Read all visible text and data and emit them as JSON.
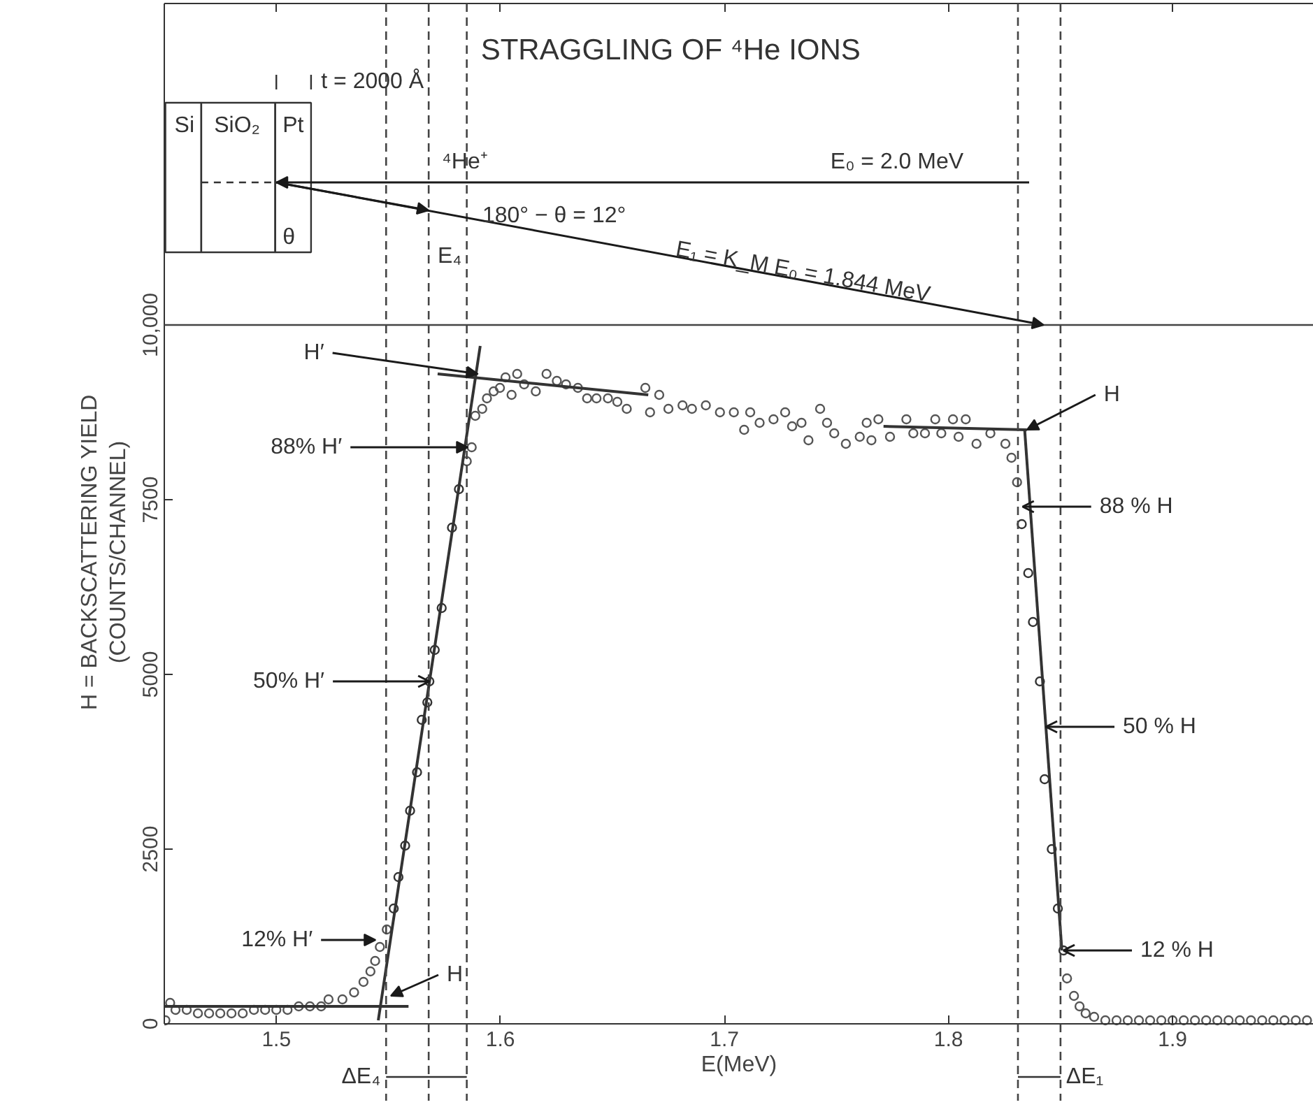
{
  "chart_data": {
    "type": "scatter",
    "title": "STRAGGLING OF ⁴He IONS",
    "xlabel": "E(MeV)",
    "ylabel": "H = BACKSCATTERING YIELD\n(COUNTS/CHANNEL)",
    "xlim": [
      1.45,
      1.963
    ],
    "ylim": [
      0,
      14600
    ],
    "xticks": [
      1.5,
      1.6,
      1.7,
      1.8,
      1.9
    ],
    "yticks": [
      0,
      2500,
      5000,
      7500,
      {
        "value": 10000,
        "label": "10,000"
      }
    ],
    "grid": false,
    "marker": "circle",
    "series": [
      {
        "color": "#555555",
        "x": [
          1.4505,
          1.4526,
          1.455,
          1.46,
          1.465,
          1.47,
          1.475,
          1.48,
          1.485,
          1.49,
          1.495,
          1.5,
          1.505,
          1.51,
          1.515,
          1.52,
          1.5233,
          1.5295,
          1.5347,
          1.5389,
          1.542,
          1.5441,
          1.5462,
          1.5493,
          1.585,
          1.5872,
          1.5888,
          1.5919,
          1.594,
          1.597,
          1.5998,
          1.6023,
          1.605,
          1.6075,
          1.6106,
          1.6158,
          1.6206,
          1.6252,
          1.6293,
          1.6346,
          1.6387,
          1.6429,
          1.648,
          1.6522,
          1.6564,
          1.6647,
          1.6668,
          1.6709,
          1.675,
          1.6813,
          1.6855,
          1.6917,
          1.698,
          1.7042,
          1.7088,
          1.7115,
          1.7157,
          1.7219,
          1.7271,
          1.7302,
          1.7344,
          1.7375,
          1.7427,
          1.7458,
          1.749,
          1.7542,
          1.7604,
          1.7635,
          1.7656,
          1.7687,
          1.7739,
          1.7812,
          1.7843,
          1.7895,
          1.7941,
          1.7968,
          1.802,
          1.8045,
          1.8077,
          1.8125,
          1.8187,
          1.8254,
          1.8281,
          1.8306,
          1.8529,
          1.856,
          1.8585,
          1.8612,
          1.865,
          1.87,
          1.875,
          1.88,
          1.885,
          1.89,
          1.895,
          1.9,
          1.905,
          1.91,
          1.915,
          1.92,
          1.925,
          1.93,
          1.935,
          1.94,
          1.945,
          1.95,
          1.955,
          1.96
        ],
        "values": [
          50,
          300,
          200,
          200,
          150,
          150,
          150,
          150,
          150,
          200,
          200,
          200,
          200,
          250,
          250,
          250,
          350,
          350,
          450,
          600,
          750,
          900,
          1100,
          1350,
          8050,
          8250,
          8700,
          8800,
          8950,
          9050,
          9100,
          9250,
          9000,
          9300,
          9150,
          9050,
          9300,
          9200,
          9150,
          9100,
          8950,
          8950,
          8950,
          8900,
          8800,
          9100,
          8750,
          9000,
          8800,
          8850,
          8800,
          8850,
          8750,
          8750,
          8500,
          8750,
          8600,
          8650,
          8750,
          8550,
          8600,
          8350,
          8800,
          8600,
          8450,
          8300,
          8400,
          8600,
          8350,
          8650,
          8400,
          8650,
          8450,
          8450,
          8650,
          8450,
          8650,
          8400,
          8650,
          8300,
          8450,
          8300,
          8100,
          7750,
          650,
          400,
          250,
          150,
          100,
          50,
          50,
          50,
          50,
          50,
          50,
          50,
          50,
          50,
          50,
          50,
          50,
          50,
          50,
          50,
          50,
          50,
          50,
          50
        ]
      },
      {
        "color": "#333333",
        "x": [
          1.5524,
          1.5545,
          1.5575,
          1.5597,
          1.5628,
          1.5649,
          1.5674,
          1.5683,
          1.5707,
          1.5738,
          1.5784,
          1.5815,
          1.8327,
          1.8356,
          1.8377,
          1.8408,
          1.8429,
          1.8461,
          1.8488,
          1.8513
        ],
        "values": [
          1650,
          2100,
          2550,
          3050,
          3600,
          4350,
          4600,
          4900,
          5350,
          5950,
          7100,
          7650,
          7150,
          6450,
          5750,
          4900,
          3500,
          2500,
          1650,
          1050
        ]
      },
      {
        "type": "line",
        "color": "#333333",
        "marker": "none",
        "x": [
          1.45,
          1.559
        ],
        "values": [
          250,
          250
        ]
      },
      {
        "type": "line",
        "color": "#333333",
        "marker": "none",
        "x": [
          1.5455,
          1.591
        ],
        "values": [
          50,
          9700
        ]
      },
      {
        "type": "line",
        "color": "#333333",
        "marker": "none",
        "x": [
          1.572,
          1.666
        ],
        "values": [
          9300,
          9000
        ]
      },
      {
        "type": "line",
        "color": "#333333",
        "marker": "none",
        "x": [
          1.771,
          1.835
        ],
        "values": [
          8550,
          8500
        ]
      },
      {
        "type": "line",
        "color": "#333333",
        "marker": "none",
        "x": [
          1.834,
          1.8506
        ],
        "values": [
          8500,
          1050
        ]
      }
    ],
    "ref_lines": [
      {
        "axis": "x",
        "value": 1.568,
        "line_style": "dashed",
        "color": "#444444"
      },
      {
        "axis": "x",
        "value": 1.549,
        "line_style": "dashed",
        "color": "#444444"
      },
      {
        "axis": "x",
        "value": 1.585,
        "line_style": "dashed",
        "color": "#444444"
      },
      {
        "axis": "x",
        "value": 1.831,
        "line_style": "dashed",
        "color": "#444444"
      },
      {
        "axis": "x",
        "value": 1.85,
        "line_style": "dashed",
        "color": "#444444"
      },
      {
        "axis": "y",
        "value": 10000,
        "line_style": "solid",
        "color": "#444444"
      }
    ],
    "annotations": [
      "Si",
      "SiO₂",
      "Pt",
      "t = 2000 Å",
      "θ",
      "E₄",
      "⁴He⁺",
      "E₀ = 2.0 MeV",
      "180° − θ = 12°",
      "E₁ = K_M E₀ = 1.844 MeV",
      "ΔE₄",
      "ΔE₁",
      {
        "text": "H′",
        "x": 1.59,
        "y": 9300
      },
      {
        "text": "88% H′",
        "x": 1.5855,
        "y": 8250
      },
      {
        "text": "50% H′",
        "x": 1.5683,
        "y": 4900
      },
      {
        "text": "12% H′",
        "x": 1.5443,
        "y": 1200
      },
      {
        "text": "H",
        "x": 1.5511,
        "y": 400
      },
      {
        "text": "H",
        "x": 1.835,
        "y": 8500
      },
      {
        "text": "88 % H",
        "x": 1.8331,
        "y": 7400
      },
      {
        "text": "50 % H",
        "x": 1.8435,
        "y": 4250
      },
      {
        "text": "12 % H",
        "x": 1.8513,
        "y": 1050
      }
    ]
  }
}
